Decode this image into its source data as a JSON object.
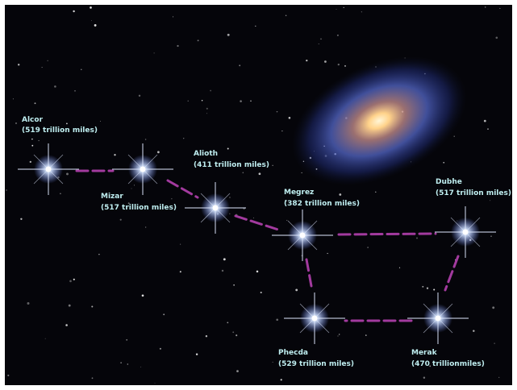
{
  "nodes": [
    {
      "name": "Alcor",
      "distance": "(519 trillion miles)"
    },
    {
      "name": "Mizar",
      "distance": "(517 trillion miles)"
    },
    {
      "name": "Alioth",
      "distance": "(411 trillion miles)"
    },
    {
      "name": "Megrez",
      "distance": "(382 trillion miles)"
    },
    {
      "name": "Dubhe",
      "distance": "(517 trillion miles)"
    },
    {
      "name": "Phecda",
      "distance": "(529 trillion miles)"
    },
    {
      "name": "Merak",
      "distance": "(470 trillionmiles)"
    }
  ]
}
